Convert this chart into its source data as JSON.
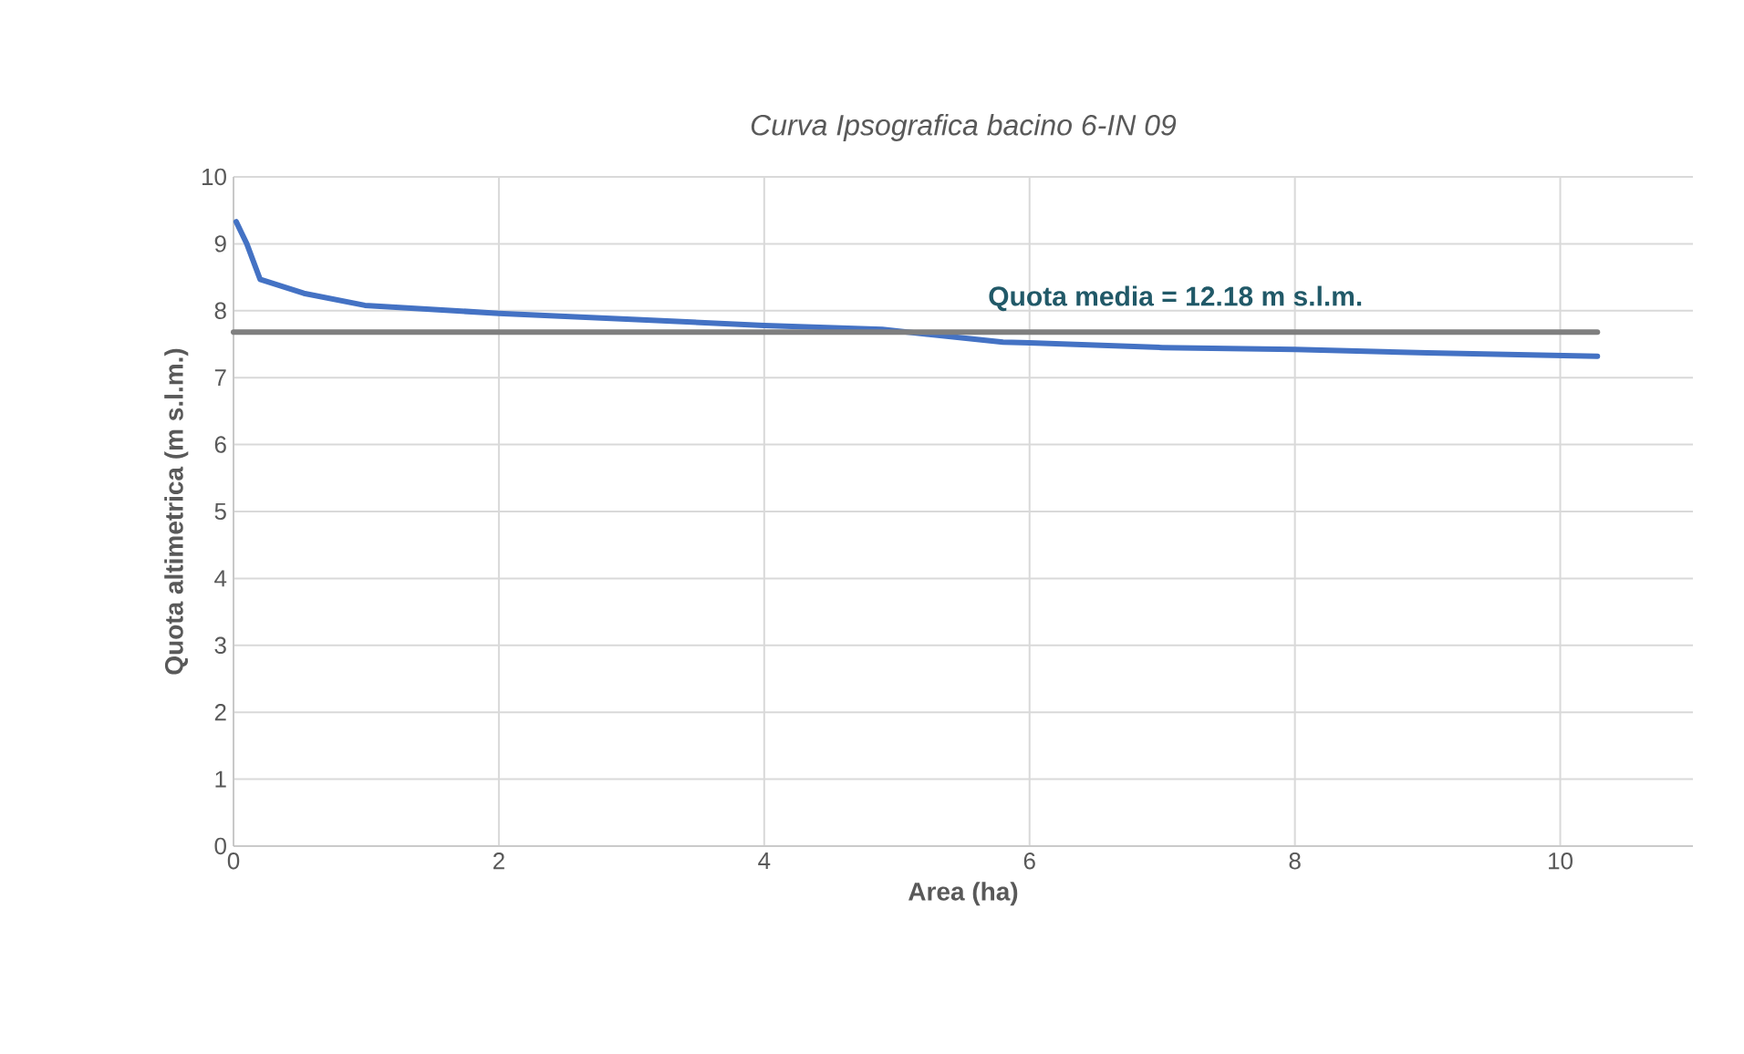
{
  "chart_data": {
    "type": "line",
    "title": "Curva Ipsografica bacino 6-IN 09",
    "xlabel": "Area (ha)",
    "ylabel": "Quota altimetrica (m s.l.m.)",
    "xlim": [
      0,
      11
    ],
    "xticks": [
      0,
      2,
      4,
      6,
      8,
      10
    ],
    "ylim": [
      0,
      10
    ],
    "yticks": [
      0,
      1,
      2,
      3,
      4,
      5,
      6,
      7,
      8,
      9,
      10
    ],
    "grid": true,
    "marker": "none",
    "line_style": "solid",
    "series": [
      {
        "color": "#4472c4",
        "x": [
          0.02,
          0.1,
          0.2,
          0.53,
          0.99,
          2.0,
          3.0,
          4.0,
          4.89,
          5.8,
          6.0,
          7.0,
          8.0,
          9.0,
          10.28
        ],
        "values": [
          9.33,
          9.0,
          8.47,
          8.26,
          8.08,
          7.96,
          7.87,
          7.78,
          7.72,
          7.53,
          7.52,
          7.45,
          7.42,
          7.37,
          7.32
        ]
      },
      {
        "color": "#7f7f7f",
        "x": [
          0,
          10.28
        ],
        "values": [
          7.68,
          7.68
        ]
      }
    ],
    "annotations": [
      {
        "text": "Quota media = 12.18 m s.l.m.",
        "x": 7.1,
        "y": 7.68
      }
    ]
  }
}
